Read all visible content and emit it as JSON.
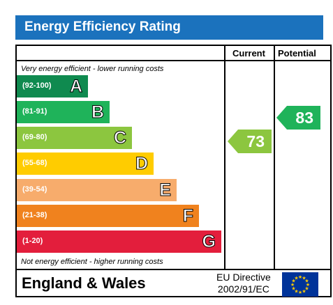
{
  "title": "Energy Efficiency Rating",
  "columns": {
    "current": "Current",
    "potential": "Potential"
  },
  "notes": {
    "top": "Very energy efficient - lower running costs",
    "bottom": "Not energy efficient - higher running costs"
  },
  "bands": [
    {
      "range": "(92-100)",
      "letter": "A",
      "color": "#0f8a4f"
    },
    {
      "range": "(81-91)",
      "letter": "B",
      "color": "#1fb35a"
    },
    {
      "range": "(69-80)",
      "letter": "C",
      "color": "#8cc63f"
    },
    {
      "range": "(55-68)",
      "letter": "D",
      "color": "#ffcc00"
    },
    {
      "range": "(39-54)",
      "letter": "E",
      "color": "#f7ac6c"
    },
    {
      "range": "(21-38)",
      "letter": "F",
      "color": "#f0821e"
    },
    {
      "range": "(1-20)",
      "letter": "G",
      "color": "#e31e3c"
    }
  ],
  "current": {
    "value": "73",
    "color": "#8cc63f"
  },
  "potential": {
    "value": "83",
    "color": "#1fb35a"
  },
  "footer": {
    "country": "England & Wales",
    "directive_line1": "EU Directive",
    "directive_line2": "2002/91/EC"
  },
  "eu_flag_icon": "eu-flag-icon"
}
